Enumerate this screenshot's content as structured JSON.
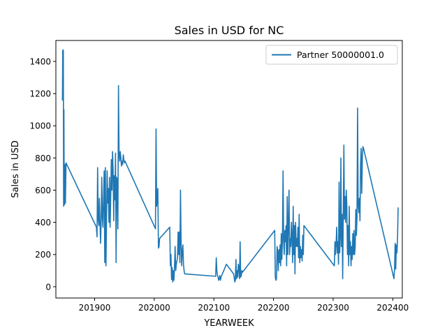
{
  "chart_data": {
    "type": "line",
    "title": "Sales in USD for NC",
    "xlabel": "YEARWEEK",
    "ylabel": "Sales in USD",
    "xlim": [
      201835,
      202416
    ],
    "ylim": [
      -70,
      1530
    ],
    "xticks": [
      201900,
      202000,
      202100,
      202200,
      202300,
      202400
    ],
    "yticks": [
      0,
      200,
      400,
      600,
      800,
      1000,
      1200,
      1400
    ],
    "grid": false,
    "legend_position": "top-right",
    "series": [
      {
        "name": "Partner 50000001.0",
        "color": "#1f77b4",
        "x": [
          201846,
          201846.5,
          201847,
          201847.5,
          201848,
          201848.5,
          201849,
          201849.5,
          201850,
          201850.5,
          201851,
          201852,
          201903,
          201904,
          201905,
          201906,
          201907,
          201908,
          201909,
          201910,
          201911,
          201912,
          201913,
          201914,
          201915,
          201916,
          201917,
          201918,
          201919,
          201920,
          201921,
          201922,
          201923,
          201924,
          201925,
          201926,
          201927,
          201928,
          201929,
          201930,
          201931,
          201932,
          201933,
          201934,
          201935,
          201936,
          201937,
          201938,
          201939,
          201940,
          201941,
          201942,
          201943,
          201944,
          201945,
          201946,
          201947,
          201948,
          201949,
          201950,
          201951,
          202002,
          202003,
          202004,
          202005,
          202006,
          202007,
          202008,
          202009,
          202026,
          202027,
          202028,
          202029,
          202030,
          202031,
          202032,
          202033,
          202034,
          202035,
          202036,
          202037,
          202038,
          202039,
          202040,
          202041,
          202042,
          202043,
          202044,
          202045,
          202046,
          202047,
          202048,
          202049,
          202050,
          202051,
          202103,
          202104,
          202105,
          202106,
          202107,
          202108,
          202109,
          202110,
          202111,
          202112,
          202121,
          202133,
          202134,
          202135,
          202136,
          202137,
          202138,
          202139,
          202140,
          202141,
          202142,
          202143,
          202144,
          202145,
          202146,
          202147,
          202148,
          202202,
          202203,
          202204,
          202205,
          202206,
          202207,
          202208,
          202209,
          202210,
          202211,
          202212,
          202213,
          202214,
          202215,
          202216,
          202217,
          202218,
          202219,
          202220,
          202221,
          202222,
          202223,
          202224,
          202225,
          202226,
          202227,
          202228,
          202229,
          202230,
          202231,
          202232,
          202233,
          202234,
          202235,
          202236,
          202237,
          202238,
          202239,
          202240,
          202241,
          202242,
          202243,
          202244,
          202245,
          202246,
          202247,
          202248,
          202249,
          202250,
          202251,
          202302,
          202303,
          202304,
          202305,
          202306,
          202307,
          202308,
          202309,
          202310,
          202311,
          202312,
          202313,
          202314,
          202315,
          202316,
          202317,
          202318,
          202319,
          202320,
          202321,
          202322,
          202323,
          202324,
          202325,
          202326,
          202327,
          202328,
          202329,
          202330,
          202331,
          202332,
          202333,
          202334,
          202335,
          202336,
          202337,
          202338,
          202339,
          202340,
          202341,
          202342,
          202343,
          202344,
          202345,
          202346,
          202347,
          202348,
          202349,
          202350,
          202351,
          202402,
          202403,
          202404,
          202405,
          202406,
          202407,
          202408,
          202409
        ],
        "y": [
          1160,
          1470,
          1300,
          1470,
          500,
          1100,
          520,
          510,
          760,
          750,
          520,
          770,
          370,
          310,
          740,
          420,
          380,
          550,
          400,
          270,
          420,
          680,
          430,
          370,
          560,
          720,
          150,
          740,
          130,
          420,
          720,
          520,
          610,
          400,
          680,
          370,
          560,
          790,
          600,
          840,
          720,
          410,
          690,
          540,
          830,
          150,
          680,
          650,
          360,
          1250,
          820,
          780,
          840,
          800,
          750,
          780,
          760,
          820,
          790,
          770,
          780,
          360,
          980,
          500,
          560,
          610,
          240,
          250,
          300,
          370,
          130,
          200,
          45,
          120,
          30,
          100,
          40,
          130,
          250,
          100,
          140,
          160,
          180,
          340,
          200,
          340,
          150,
          600,
          280,
          130,
          220,
          260,
          140,
          100,
          80,
          65,
          180,
          100,
          70,
          60,
          40,
          50,
          70,
          40,
          60,
          140,
          80,
          60,
          30,
          40,
          170,
          50,
          100,
          60,
          140,
          120,
          50,
          280,
          60,
          70,
          100,
          90,
          350,
          60,
          40,
          50,
          250,
          220,
          100,
          230,
          150,
          260,
          130,
          330,
          170,
          300,
          720,
          280,
          200,
          350,
          280,
          380,
          130,
          560,
          200,
          380,
          600,
          200,
          300,
          250,
          400,
          310,
          150,
          500,
          200,
          380,
          80,
          400,
          250,
          300,
          250,
          370,
          180,
          450,
          150,
          250,
          180,
          230,
          160,
          320,
          200,
          380,
          130,
          280,
          200,
          270,
          370,
          210,
          280,
          140,
          650,
          210,
          310,
          800,
          250,
          450,
          50,
          440,
          880,
          420,
          560,
          400,
          600,
          500,
          200,
          380,
          130,
          500,
          200,
          280,
          130,
          250,
          170,
          330,
          200,
          350,
          200,
          250,
          480,
          320,
          430,
          1110,
          500,
          460,
          550,
          410,
          760,
          860,
          580,
          800,
          870,
          860,
          50,
          110,
          270,
          110,
          260,
          210,
          300,
          490
        ]
      }
    ]
  }
}
